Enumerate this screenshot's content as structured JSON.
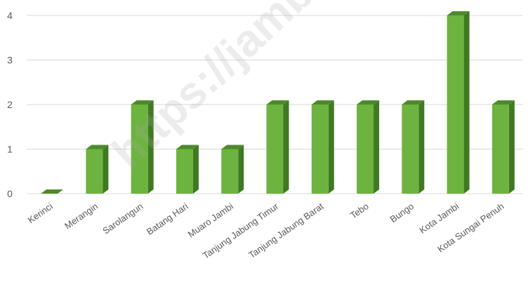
{
  "chart_data": {
    "type": "bar",
    "categories": [
      "Kerinci",
      "Merangin",
      "Sarolangun",
      "Batang Hari",
      "Muaro Jambi",
      "Tanjung Jabung Timur",
      "Tanjung Jabung Barat",
      "Tebo",
      "Bungo",
      "Kota Jambi",
      "Kota Sungai Penuh"
    ],
    "values": [
      0,
      1,
      2,
      1,
      1,
      2,
      2,
      2,
      2,
      4,
      2
    ],
    "ylim": [
      0,
      4
    ],
    "yticks": [
      0,
      1,
      2,
      3,
      4
    ],
    "grid": true,
    "bar_color": "#6db33f",
    "bar_side_color": "#3f7a22",
    "bar_top_color": "#4e8a2c"
  },
  "watermark": "https://jambi.bps.go.id"
}
